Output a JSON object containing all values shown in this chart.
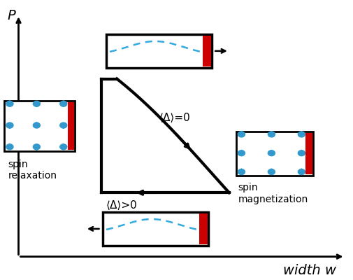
{
  "bg_color": "#ffffff",
  "axis_color": "#000000",
  "arrow_color": "#000000",
  "red_color": "#cc0000",
  "blue_color": "#3399cc",
  "curve_color": "#33aadd",
  "label_P": "P",
  "label_w": "width w",
  "label_delta0": "⟨Δ⟩=0",
  "label_deltapos": "⟨Δ⟩>0",
  "label_spin_rel": "spin\nrelaxation",
  "label_spin_mag": "spin\nmagnetization",
  "fig_width": 5.05,
  "fig_height": 4.0,
  "dpi": 100
}
